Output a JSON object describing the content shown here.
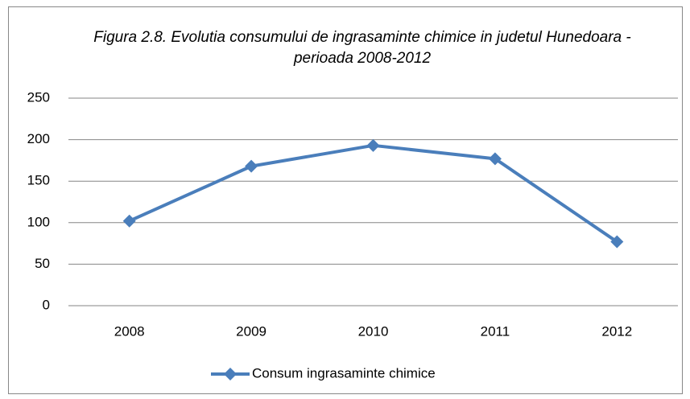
{
  "chart_data": {
    "type": "line",
    "title": "Figura 2.8. Evolutia consumului de ingrasaminte chimice in judetul Hunedoara - perioada 2008-2012",
    "categories": [
      "2008",
      "2009",
      "2010",
      "2011",
      "2012"
    ],
    "series": [
      {
        "name": "Consum ingrasaminte chimice",
        "color": "#4a7ebb",
        "values": [
          102,
          168,
          193,
          177,
          77
        ]
      }
    ],
    "ylim": [
      0,
      250
    ],
    "yticks": [
      0,
      50,
      100,
      150,
      200,
      250
    ],
    "grid": true,
    "legend": "bottom"
  }
}
